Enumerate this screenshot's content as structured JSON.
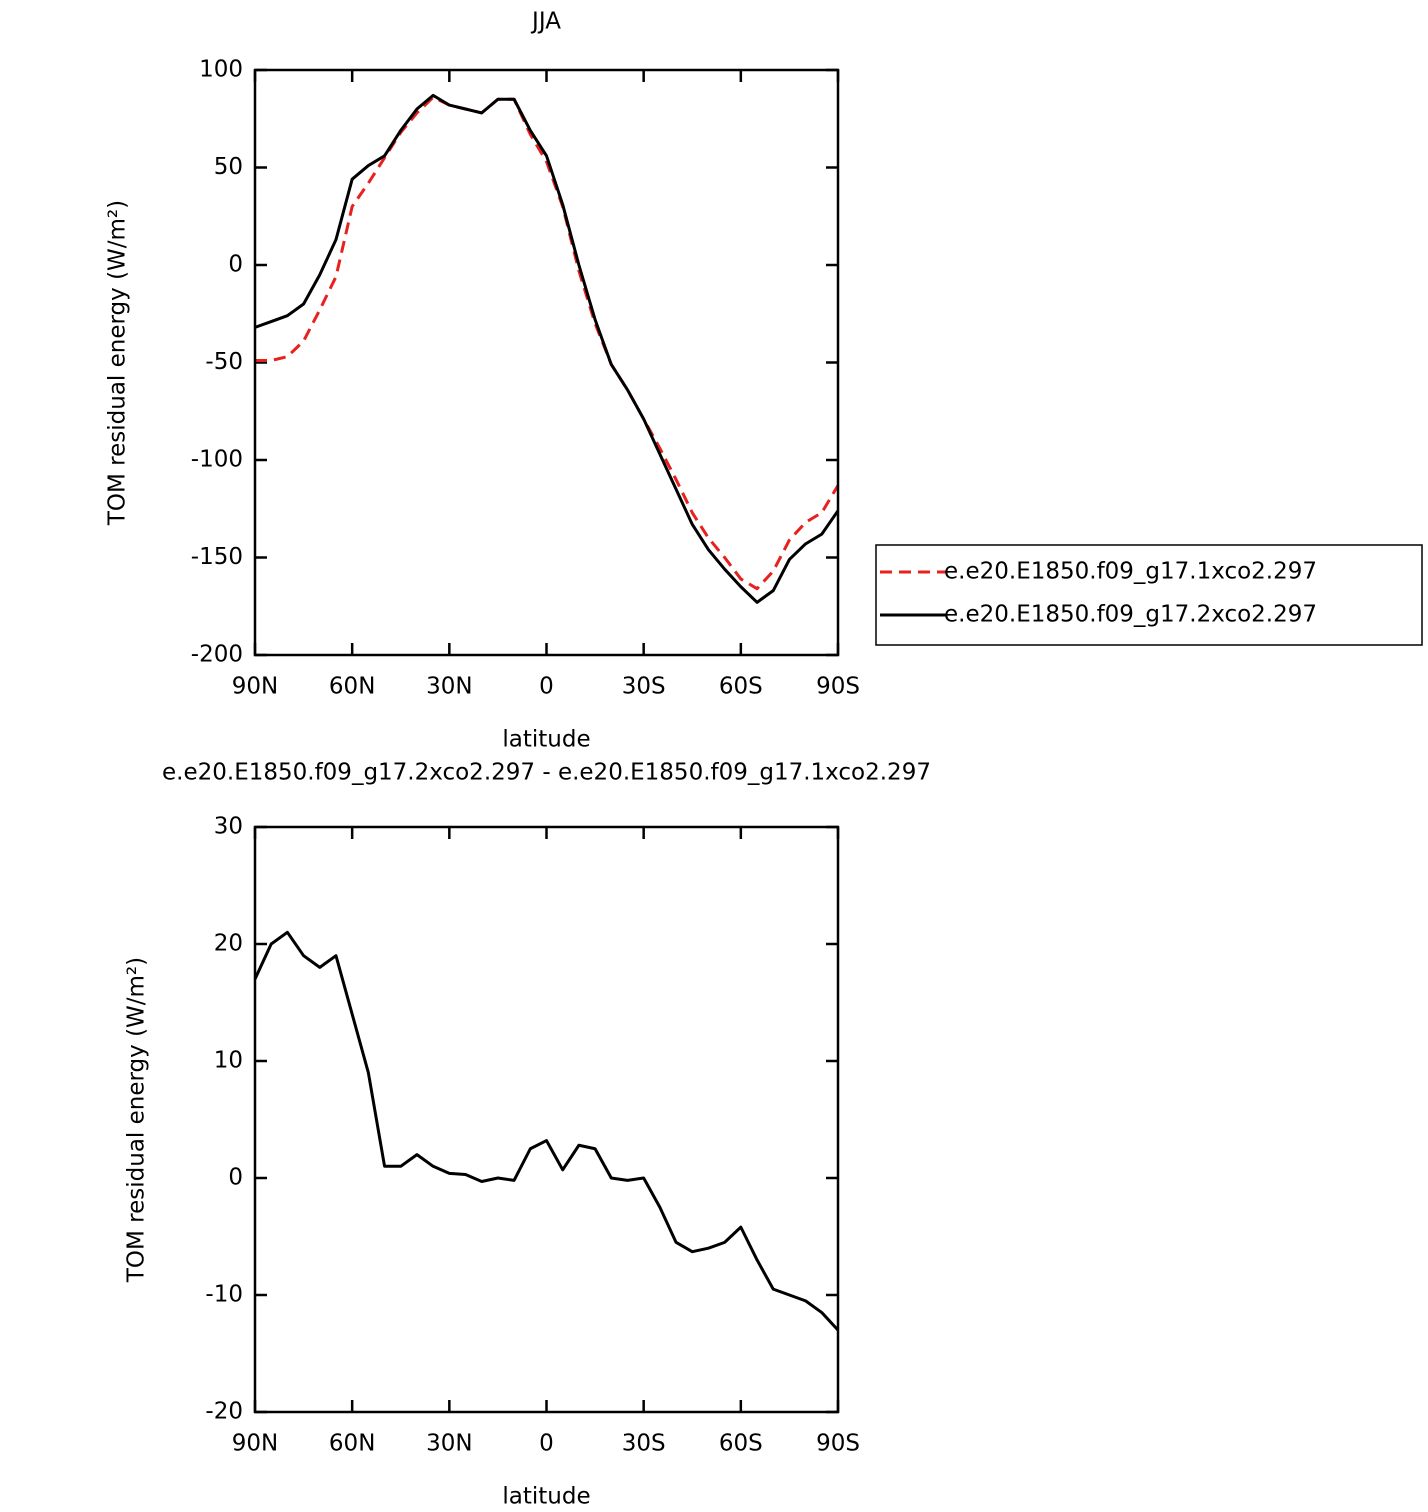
{
  "chart_data": [
    {
      "type": "line",
      "title": "JJA",
      "x_label": "latitude",
      "y_label": "TOM residual energy (W/m²)",
      "x": [
        90,
        85,
        80,
        75,
        70,
        65,
        60,
        55,
        50,
        45,
        40,
        35,
        30,
        25,
        20,
        15,
        10,
        5,
        0,
        -5,
        -10,
        -15,
        -20,
        -25,
        -30,
        -35,
        -40,
        -45,
        -50,
        -55,
        -60,
        -65,
        -70,
        -75,
        -80,
        -85,
        -90
      ],
      "xlim": [
        90,
        -90
      ],
      "xticks": [
        {
          "value": 90,
          "label": "90N"
        },
        {
          "value": 60,
          "label": "60N"
        },
        {
          "value": 30,
          "label": "30N"
        },
        0,
        {
          "value": -30,
          "label": "30S"
        },
        {
          "value": -60,
          "label": "60S"
        },
        {
          "value": -90,
          "label": "90S"
        }
      ],
      "ylim": [
        -200,
        100
      ],
      "yticks": [
        100,
        50,
        0,
        -50,
        -100,
        -150,
        -200
      ],
      "legend": "right",
      "series": [
        {
          "name": "e.e20.E1850.f09_g17.1xco2.297",
          "color": "#e8201e",
          "linestyle": "dashed",
          "values": [
            -49,
            -49,
            -47,
            -39,
            -23,
            -6,
            30,
            42,
            55,
            68,
            78,
            86,
            82,
            80,
            78,
            85,
            85,
            67,
            53,
            30,
            -3,
            -30,
            -51,
            -64,
            -79,
            -94,
            -110,
            -127,
            -140,
            -150,
            -161,
            -166,
            -157,
            -141,
            -132,
            -127,
            -113
          ]
        },
        {
          "name": "e.e20.E1850.f09_g17.2xco2.297",
          "color": "#000000",
          "linestyle": "solid",
          "values": [
            -32,
            -29,
            -26,
            -20,
            -5,
            13,
            44,
            51,
            56,
            69,
            80,
            87,
            82,
            80,
            78,
            85,
            85,
            69,
            56,
            31,
            0,
            -28,
            -51,
            -64,
            -79,
            -97,
            -115,
            -133,
            -146,
            -156,
            -165,
            -173,
            -167,
            -151,
            -143,
            -138,
            -126
          ]
        }
      ]
    },
    {
      "type": "line",
      "title": "e.e20.E1850.f09_g17.2xco2.297 - e.e20.E1850.f09_g17.1xco2.297",
      "x_label": "latitude",
      "y_label": "TOM residual energy (W/m²)",
      "x": [
        90,
        85,
        80,
        75,
        70,
        65,
        60,
        55,
        50,
        45,
        40,
        35,
        30,
        25,
        20,
        15,
        10,
        5,
        0,
        -5,
        -10,
        -15,
        -20,
        -25,
        -30,
        -35,
        -40,
        -45,
        -50,
        -55,
        -60,
        -65,
        -70,
        -75,
        -80,
        -85,
        -90
      ],
      "xlim": [
        90,
        -90
      ],
      "xticks": [
        {
          "value": 90,
          "label": "90N"
        },
        {
          "value": 60,
          "label": "60N"
        },
        {
          "value": 30,
          "label": "30N"
        },
        0,
        {
          "value": -30,
          "label": "30S"
        },
        {
          "value": -60,
          "label": "60S"
        },
        {
          "value": -90,
          "label": "90S"
        }
      ],
      "ylim": [
        -20,
        30
      ],
      "yticks": [
        30,
        20,
        10,
        0,
        -10,
        -20
      ],
      "series": [
        {
          "color": "#000000",
          "linestyle": "solid",
          "values": [
            17,
            20,
            21,
            19,
            18,
            19,
            14,
            9,
            1,
            1,
            2,
            1,
            0.4,
            0.3,
            -0.3,
            0,
            -0.2,
            2.5,
            3.2,
            0.7,
            2.8,
            2.5,
            0,
            -0.2,
            0,
            -2.5,
            -5.5,
            -6.3,
            -6,
            -5.5,
            -4.2,
            -7,
            -9.5,
            -10,
            -10.5,
            -11.5,
            -13
          ]
        }
      ]
    }
  ]
}
